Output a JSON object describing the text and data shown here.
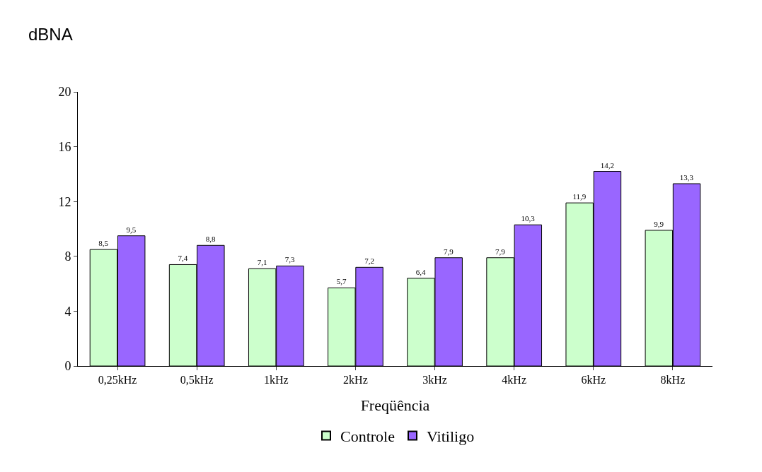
{
  "chart_data": {
    "type": "bar",
    "ylabel": "dBNA",
    "xlabel": "Freqüência",
    "categories": [
      "0,25kHz",
      "0,5kHz",
      "1kHz",
      "2kHz",
      "3kHz",
      "4kHz",
      "6kHz",
      "8kHz"
    ],
    "series": [
      {
        "name": "Controle",
        "color": "#ccffcc",
        "values": [
          8.5,
          7.4,
          7.1,
          5.7,
          6.4,
          7.9,
          11.9,
          9.9
        ],
        "value_labels": [
          "8,5",
          "7,4",
          "7,1",
          "5,7",
          "6,4",
          "7,9",
          "11,9",
          "9,9"
        ]
      },
      {
        "name": "Vitiligo",
        "color": "#9966ff",
        "values": [
          9.5,
          8.8,
          7.3,
          7.2,
          7.9,
          10.3,
          14.2,
          13.3
        ],
        "value_labels": [
          "9,5",
          "8,8",
          "7,3",
          "7,2",
          "7,9",
          "10,3",
          "14,2",
          "13,3"
        ]
      }
    ],
    "ylim": [
      0,
      20
    ],
    "yticks": [
      0,
      4,
      8,
      12,
      16,
      20
    ],
    "grid": false,
    "legend": "bottom"
  }
}
